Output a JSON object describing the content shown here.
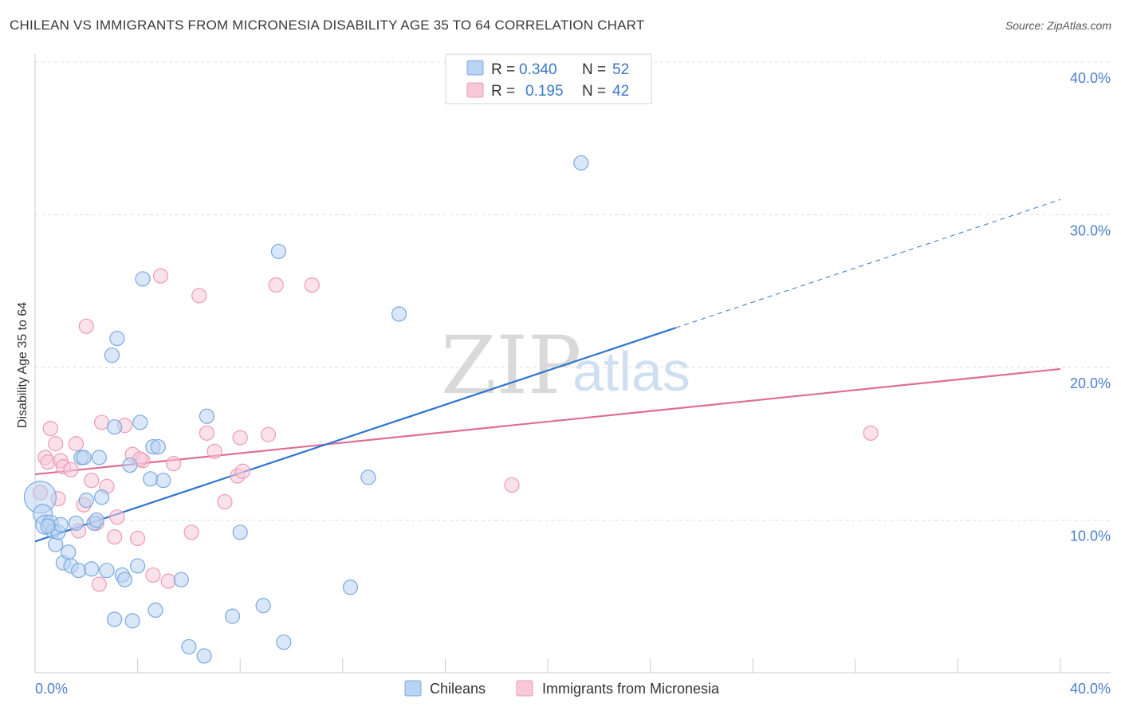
{
  "header": {
    "title": "CHILEAN VS IMMIGRANTS FROM MICRONESIA DISABILITY AGE 35 TO 64 CORRELATION CHART",
    "source": "Source: ZipAtlas.com"
  },
  "watermark": {
    "zip": "ZIP",
    "atlas": "atlas"
  },
  "colors": {
    "blue_fill": "#b9d3f3",
    "blue_stroke": "#7aa9e0",
    "blue_line": "#2f74cf",
    "pink_fill": "#f8c8d8",
    "pink_stroke": "#ee9ab6",
    "pink_line": "#e06c95",
    "grid": "#dddddd",
    "tick_text": "#4a7fcc"
  },
  "legend": {
    "rows": [
      {
        "r_label": "R =",
        "r_value": "0.340",
        "n_label": "N =",
        "n_value": "52"
      },
      {
        "r_label": "R =",
        "r_value": "0.195",
        "n_label": "N =",
        "n_value": "42"
      }
    ]
  },
  "bottom_legend": [
    "Chileans",
    "Immigrants from Micronesia"
  ],
  "chart_data": {
    "type": "scatter",
    "title": "CHILEAN VS IMMIGRANTS FROM MICRONESIA DISABILITY AGE 35 TO 64 CORRELATION CHART",
    "xlabel": "",
    "ylabel": "Disability Age 35 to 64",
    "xlim": [
      0,
      40
    ],
    "ylim": [
      0,
      40
    ],
    "x_tick_labels": [
      "0.0%",
      "40.0%"
    ],
    "y_ticks": [
      10,
      20,
      30,
      40
    ],
    "y_tick_labels": [
      "10.0%",
      "20.0%",
      "30.0%",
      "40.0%"
    ],
    "grid": true,
    "legend_position": "top-center",
    "series": [
      {
        "name": "Chileans",
        "r": 0.34,
        "n": 52,
        "trend": {
          "x": [
            0,
            25
          ],
          "y": [
            8.6,
            22.6
          ],
          "dashed_to": [
            40,
            31.0
          ]
        },
        "points": [
          [
            0.2,
            11.5,
            20
          ],
          [
            0.3,
            10.4,
            12
          ],
          [
            0.4,
            9.7,
            12
          ],
          [
            0.6,
            9.8,
            10
          ],
          [
            0.7,
            9.3,
            9
          ],
          [
            0.8,
            8.4,
            9
          ],
          [
            0.9,
            9.2,
            9
          ],
          [
            1.0,
            9.7,
            9
          ],
          [
            1.1,
            7.2,
            9
          ],
          [
            1.3,
            7.9,
            9
          ],
          [
            1.4,
            7.0,
            9
          ],
          [
            1.6,
            9.8,
            9
          ],
          [
            1.7,
            6.7,
            9
          ],
          [
            1.8,
            14.1,
            9
          ],
          [
            1.9,
            14.1,
            9
          ],
          [
            2.0,
            11.3,
            9
          ],
          [
            2.2,
            6.8,
            9
          ],
          [
            2.3,
            9.8,
            9
          ],
          [
            2.5,
            14.1,
            9
          ],
          [
            2.6,
            11.5,
            9
          ],
          [
            2.8,
            6.7,
            9
          ],
          [
            3.1,
            16.1,
            9
          ],
          [
            3.1,
            3.5,
            9
          ],
          [
            3.0,
            20.8,
            9
          ],
          [
            3.2,
            21.9,
            9
          ],
          [
            3.4,
            6.4,
            9
          ],
          [
            3.5,
            6.1,
            9
          ],
          [
            3.7,
            13.6,
            9
          ],
          [
            3.8,
            3.4,
            9
          ],
          [
            4.0,
            7.0,
            9
          ],
          [
            4.1,
            16.4,
            9
          ],
          [
            4.2,
            25.8,
            9
          ],
          [
            4.5,
            12.7,
            9
          ],
          [
            4.6,
            14.8,
            9
          ],
          [
            4.7,
            4.1,
            9
          ],
          [
            4.8,
            14.8,
            9
          ],
          [
            5.0,
            12.6,
            9
          ],
          [
            5.7,
            6.1,
            9
          ],
          [
            6.0,
            1.7,
            9
          ],
          [
            6.6,
            1.1,
            9
          ],
          [
            6.7,
            16.8,
            9
          ],
          [
            7.7,
            3.7,
            9
          ],
          [
            8.0,
            9.2,
            9
          ],
          [
            8.9,
            4.4,
            9
          ],
          [
            9.5,
            27.6,
            9
          ],
          [
            9.7,
            2.0,
            9
          ],
          [
            12.3,
            5.6,
            9
          ],
          [
            13.0,
            12.8,
            9
          ],
          [
            14.2,
            23.5,
            9
          ],
          [
            21.3,
            33.4,
            9
          ],
          [
            0.5,
            9.6,
            9
          ],
          [
            2.4,
            10.0,
            9
          ]
        ]
      },
      {
        "name": "Immigrants from Micronesia",
        "r": 0.195,
        "n": 42,
        "trend": {
          "x": [
            0,
            40
          ],
          "y": [
            13.0,
            19.9
          ]
        },
        "points": [
          [
            0.2,
            11.8,
            9
          ],
          [
            0.4,
            14.1,
            9
          ],
          [
            0.5,
            13.8,
            9
          ],
          [
            0.6,
            16.0,
            9
          ],
          [
            0.8,
            15.0,
            9
          ],
          [
            0.9,
            11.4,
            9
          ],
          [
            1.0,
            13.9,
            9
          ],
          [
            1.1,
            13.5,
            9
          ],
          [
            1.4,
            13.3,
            9
          ],
          [
            1.6,
            15.0,
            9
          ],
          [
            1.7,
            9.3,
            9
          ],
          [
            1.9,
            11.0,
            9
          ],
          [
            2.0,
            22.7,
            9
          ],
          [
            2.2,
            12.6,
            9
          ],
          [
            2.4,
            9.8,
            9
          ],
          [
            2.5,
            5.8,
            9
          ],
          [
            2.6,
            16.4,
            9
          ],
          [
            2.8,
            12.2,
            9
          ],
          [
            3.1,
            8.9,
            9
          ],
          [
            3.2,
            10.2,
            9
          ],
          [
            3.5,
            16.2,
            9
          ],
          [
            3.8,
            14.3,
            9
          ],
          [
            4.0,
            8.8,
            9
          ],
          [
            4.2,
            13.9,
            9
          ],
          [
            4.6,
            6.4,
            9
          ],
          [
            4.9,
            26.0,
            9
          ],
          [
            5.2,
            6.0,
            9
          ],
          [
            5.4,
            13.7,
            9
          ],
          [
            6.1,
            9.2,
            9
          ],
          [
            6.4,
            24.7,
            9
          ],
          [
            6.7,
            15.7,
            9
          ],
          [
            7.0,
            14.5,
            9
          ],
          [
            7.4,
            11.2,
            9
          ],
          [
            7.9,
            12.9,
            9
          ],
          [
            8.0,
            15.4,
            9
          ],
          [
            8.1,
            13.2,
            9
          ],
          [
            9.1,
            15.6,
            9
          ],
          [
            9.4,
            25.4,
            9
          ],
          [
            10.8,
            25.4,
            9
          ],
          [
            18.6,
            12.3,
            9
          ],
          [
            32.6,
            15.7,
            9
          ],
          [
            4.1,
            14.0,
            9
          ]
        ]
      }
    ]
  }
}
